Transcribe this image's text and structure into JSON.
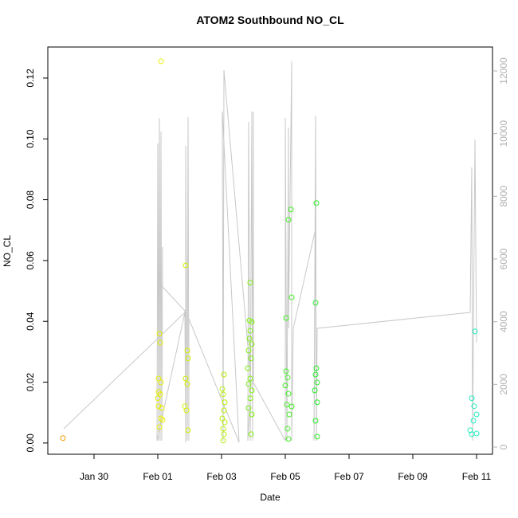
{
  "chart_data": {
    "type": "scatter",
    "title": "ATOM2 Southbound NO_CL",
    "x_label": "Date",
    "y_label": "NO_CL",
    "xlim": [
      28.55,
      42.5
    ],
    "xticks": [
      {
        "value": 30,
        "label": "Jan 30"
      },
      {
        "value": 32,
        "label": "Feb 01"
      },
      {
        "value": 34,
        "label": "Feb 03"
      },
      {
        "value": 36,
        "label": "Feb 05"
      },
      {
        "value": 38,
        "label": "Feb 07"
      },
      {
        "value": 40,
        "label": "Feb 09"
      },
      {
        "value": 42,
        "label": "Feb 11"
      }
    ],
    "ylim": [
      -0.0037,
      0.1302
    ],
    "yticks": [
      {
        "value": 0,
        "label": "0.00"
      },
      0.02,
      0.04,
      0.06,
      0.08,
      {
        "value": 0.1,
        "label": "0.10"
      },
      0.12
    ],
    "y2lim": [
      -229,
      12763
    ],
    "y2ticks": [
      0,
      2000,
      4000,
      6000,
      8000,
      10000,
      12000
    ],
    "y2_color": "#b0b0b0",
    "series": [
      {
        "type": "line",
        "axis": "y2",
        "color": "#c8c8c8",
        "x": [
          29.05,
          32.85,
          31.975,
          32.0,
          32.025,
          32.05,
          32.075,
          32.1,
          32.125,
          32.15,
          32.15,
          32.85,
          32.875,
          32.875,
          32.925,
          32.95,
          32.975,
          32.975,
          34.55,
          34.025,
          34.05,
          34.075,
          34.925,
          34.825,
          34.85,
          34.9,
          34.95,
          34.975,
          35.0,
          35.0,
          36.0,
          36.0,
          36.05,
          36.1,
          36.1,
          36.2,
          36.2,
          36.25,
          36.95,
          36.9,
          36.95,
          36.975,
          37.0,
          41.8,
          41.85,
          41.875,
          41.95,
          42.0
        ],
        "values": [
          585,
          4297,
          203,
          9687,
          203,
          10501,
          203,
          10069,
          203,
          6382,
          5111,
          4348,
          153,
          9611,
          203,
          10526,
          203,
          4094,
          153,
          10704,
          203,
          12026,
          2059,
          203,
          10374,
          203,
          10704,
          203,
          10704,
          2059,
          203,
          10501,
          203,
          10196,
          3788,
          12306,
          203,
          3788,
          6967,
          203,
          10577,
          203,
          3788,
          4297,
          8925,
          203,
          9814,
          3331
        ]
      },
      {
        "type": "scatter",
        "color": "#f0a000",
        "x": [
          29.025
        ],
        "values": [
          0.0016
        ]
      },
      {
        "type": "scatter",
        "color": "#e8f000",
        "x": [
          32.1,
          32.05,
          32.075,
          32.025,
          32.1,
          32.0,
          32.075,
          32.025,
          32.125,
          32.1,
          32.15,
          32.05,
          32.025
        ],
        "values": [
          0.1255,
          0.036,
          0.033,
          0.0212,
          0.0199,
          0.0147,
          0.016,
          0.0121,
          0.0115,
          0.0081,
          0.0076,
          0.0052,
          0.0168
        ]
      },
      {
        "type": "scatter",
        "color": "#d4f000",
        "x": [
          32.875,
          32.925,
          32.95,
          32.875,
          32.925,
          32.85,
          32.9,
          32.95
        ],
        "values": [
          0.0584,
          0.0304,
          0.0278,
          0.0212,
          0.0194,
          0.0121,
          0.0107,
          0.0042
        ]
      },
      {
        "type": "scatter",
        "color": "#b4f000",
        "x": [
          34.075,
          34.025,
          34.05,
          34.1,
          34.075,
          34.025,
          34.1,
          34.05,
          34.075,
          34.05
        ],
        "values": [
          0.0225,
          0.0178,
          0.016,
          0.0134,
          0.0107,
          0.0081,
          0.0068,
          0.0047,
          0.0029,
          0.0008
        ]
      },
      {
        "type": "scatter",
        "color": "#80f010",
        "x": [
          34.9,
          34.875,
          34.95,
          34.9,
          34.875,
          34.95,
          34.85,
          34.925,
          34.825,
          34.9,
          34.85,
          34.95,
          34.9,
          34.85,
          34.95,
          34.925
        ],
        "values": [
          0.0527,
          0.0403,
          0.0398,
          0.0369,
          0.0343,
          0.0325,
          0.0304,
          0.0278,
          0.0246,
          0.0212,
          0.0194,
          0.0173,
          0.0147,
          0.0115,
          0.0094,
          0.0029
        ]
      },
      {
        "type": "scatter",
        "color": "#40f020",
        "x": [
          36.175,
          36.1,
          36.2,
          36.025,
          36.025,
          36.075,
          36.0,
          36.1,
          36.2,
          36.05,
          36.125,
          36.075,
          36.1
        ],
        "values": [
          0.0768,
          0.0734,
          0.0479,
          0.0411,
          0.0236,
          0.0215,
          0.0189,
          0.0162,
          0.012,
          0.0126,
          0.0094,
          0.0047,
          0.0013
        ]
      },
      {
        "type": "scatter",
        "color": "#28ee28",
        "x": [
          36.975,
          36.95,
          36.975,
          36.95,
          37.0,
          36.925,
          37.0,
          36.95,
          37.0
        ],
        "values": [
          0.0789,
          0.0461,
          0.0246,
          0.0225,
          0.0199,
          0.0173,
          0.0134,
          0.0073,
          0.0021
        ]
      },
      {
        "type": "scatter",
        "color": "#20eec0",
        "x": [
          41.95,
          41.85,
          41.925,
          42.0,
          41.9,
          41.8,
          42.0,
          41.85
        ],
        "values": [
          0.0367,
          0.0147,
          0.0121,
          0.0094,
          0.0073,
          0.0042,
          0.0031,
          0.0029
        ]
      }
    ]
  }
}
